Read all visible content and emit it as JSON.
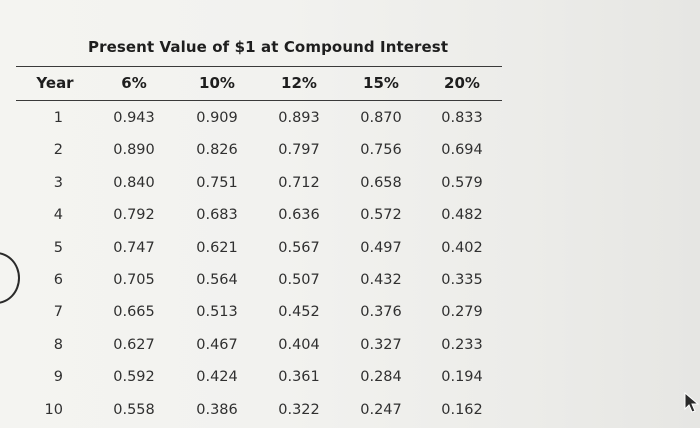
{
  "table": {
    "title": "Present Value of $1 at Compound Interest",
    "headers": [
      "Year",
      "6%",
      "10%",
      "12%",
      "15%",
      "20%"
    ],
    "rows": [
      [
        "1",
        "0.943",
        "0.909",
        "0.893",
        "0.870",
        "0.833"
      ],
      [
        "2",
        "0.890",
        "0.826",
        "0.797",
        "0.756",
        "0.694"
      ],
      [
        "3",
        "0.840",
        "0.751",
        "0.712",
        "0.658",
        "0.579"
      ],
      [
        "4",
        "0.792",
        "0.683",
        "0.636",
        "0.572",
        "0.482"
      ],
      [
        "5",
        "0.747",
        "0.621",
        "0.567",
        "0.497",
        "0.402"
      ],
      [
        "6",
        "0.705",
        "0.564",
        "0.507",
        "0.432",
        "0.335"
      ],
      [
        "7",
        "0.665",
        "0.513",
        "0.452",
        "0.376",
        "0.279"
      ],
      [
        "8",
        "0.627",
        "0.467",
        "0.404",
        "0.327",
        "0.233"
      ],
      [
        "9",
        "0.592",
        "0.424",
        "0.361",
        "0.284",
        "0.194"
      ],
      [
        "10",
        "0.558",
        "0.386",
        "0.322",
        "0.247",
        "0.162"
      ]
    ]
  },
  "icons": {
    "cursor": "mouse-pointer-icon",
    "edge_mark": "circle-mark"
  }
}
